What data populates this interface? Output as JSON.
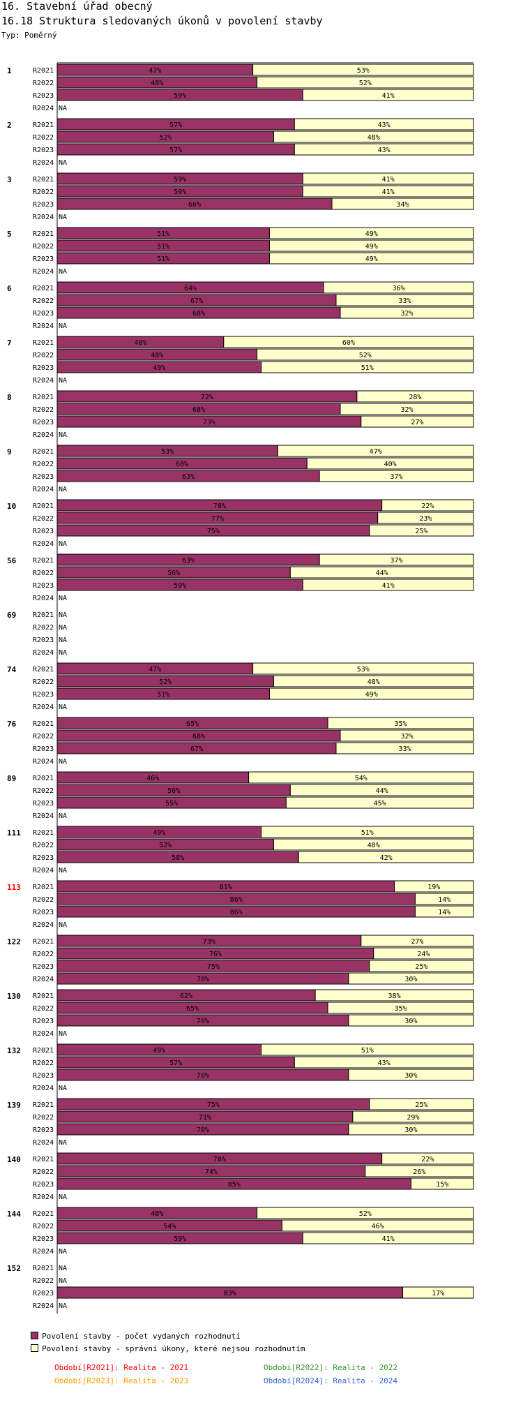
{
  "header": {
    "title": "16. Stavební úřad obecný",
    "subtitle": "16.18 Struktura sledovaných úkonů v povolení stavby",
    "type_label": "Typ: Poměrný"
  },
  "colors": {
    "issued": "#993366",
    "other": "#ffffcc",
    "highlight_group": "#ff0000",
    "normal_group": "#000000",
    "period_2021": "#ff0000",
    "period_2022": "#339933",
    "period_2023": "#ff9900",
    "period_2024": "#3366cc"
  },
  "chart_data": {
    "type": "bar",
    "orientation": "horizontal",
    "stacked": "percent",
    "title": "16.18 Struktura sledovaných úkonů v povolení stavby",
    "xlim": [
      0,
      100
    ],
    "na_label": "NA",
    "series": [
      {
        "name": "Povolení stavby - počet vydaných rozhodnutí",
        "color": "#993366"
      },
      {
        "name": "Povolení stavby - správní úkony, které nejsou rozhodnutím",
        "color": "#ffffcc"
      }
    ],
    "highlight_group": "113",
    "groups": [
      {
        "label": "1",
        "rows": [
          {
            "period": "R2021",
            "values": [
              47,
              53
            ]
          },
          {
            "period": "R2022",
            "values": [
              48,
              52
            ]
          },
          {
            "period": "R2023",
            "values": [
              59,
              41
            ]
          },
          {
            "period": "R2024",
            "values": null
          }
        ]
      },
      {
        "label": "2",
        "rows": [
          {
            "period": "R2021",
            "values": [
              57,
              43
            ]
          },
          {
            "period": "R2022",
            "values": [
              52,
              48
            ]
          },
          {
            "period": "R2023",
            "values": [
              57,
              43
            ]
          },
          {
            "period": "R2024",
            "values": null
          }
        ]
      },
      {
        "label": "3",
        "rows": [
          {
            "period": "R2021",
            "values": [
              59,
              41
            ]
          },
          {
            "period": "R2022",
            "values": [
              59,
              41
            ]
          },
          {
            "period": "R2023",
            "values": [
              66,
              34
            ]
          },
          {
            "period": "R2024",
            "values": null
          }
        ]
      },
      {
        "label": "5",
        "rows": [
          {
            "period": "R2021",
            "values": [
              51,
              49
            ]
          },
          {
            "period": "R2022",
            "values": [
              51,
              49
            ]
          },
          {
            "period": "R2023",
            "values": [
              51,
              49
            ]
          },
          {
            "period": "R2024",
            "values": null
          }
        ]
      },
      {
        "label": "6",
        "rows": [
          {
            "period": "R2021",
            "values": [
              64,
              36
            ]
          },
          {
            "period": "R2022",
            "values": [
              67,
              33
            ]
          },
          {
            "period": "R2023",
            "values": [
              68,
              32
            ]
          },
          {
            "period": "R2024",
            "values": null
          }
        ]
      },
      {
        "label": "7",
        "rows": [
          {
            "period": "R2021",
            "values": [
              40,
              60
            ]
          },
          {
            "period": "R2022",
            "values": [
              48,
              52
            ]
          },
          {
            "period": "R2023",
            "values": [
              49,
              51
            ]
          },
          {
            "period": "R2024",
            "values": null
          }
        ]
      },
      {
        "label": "8",
        "rows": [
          {
            "period": "R2021",
            "values": [
              72,
              28
            ]
          },
          {
            "period": "R2022",
            "values": [
              68,
              32
            ]
          },
          {
            "period": "R2023",
            "values": [
              73,
              27
            ]
          },
          {
            "period": "R2024",
            "values": null
          }
        ]
      },
      {
        "label": "9",
        "rows": [
          {
            "period": "R2021",
            "values": [
              53,
              47
            ]
          },
          {
            "period": "R2022",
            "values": [
              60,
              40
            ]
          },
          {
            "period": "R2023",
            "values": [
              63,
              37
            ]
          },
          {
            "period": "R2024",
            "values": null
          }
        ]
      },
      {
        "label": "10",
        "rows": [
          {
            "period": "R2021",
            "values": [
              78,
              22
            ]
          },
          {
            "period": "R2022",
            "values": [
              77,
              23
            ]
          },
          {
            "period": "R2023",
            "values": [
              75,
              25
            ]
          },
          {
            "period": "R2024",
            "values": null
          }
        ]
      },
      {
        "label": "56",
        "rows": [
          {
            "period": "R2021",
            "values": [
              63,
              37
            ]
          },
          {
            "period": "R2022",
            "values": [
              56,
              44
            ]
          },
          {
            "period": "R2023",
            "values": [
              59,
              41
            ]
          },
          {
            "period": "R2024",
            "values": null
          }
        ]
      },
      {
        "label": "69",
        "rows": [
          {
            "period": "R2021",
            "values": null
          },
          {
            "period": "R2022",
            "values": null
          },
          {
            "period": "R2023",
            "values": null
          },
          {
            "period": "R2024",
            "values": null
          }
        ]
      },
      {
        "label": "74",
        "rows": [
          {
            "period": "R2021",
            "values": [
              47,
              53
            ]
          },
          {
            "period": "R2022",
            "values": [
              52,
              48
            ]
          },
          {
            "period": "R2023",
            "values": [
              51,
              49
            ]
          },
          {
            "period": "R2024",
            "values": null
          }
        ]
      },
      {
        "label": "76",
        "rows": [
          {
            "period": "R2021",
            "values": [
              65,
              35
            ]
          },
          {
            "period": "R2022",
            "values": [
              68,
              32
            ]
          },
          {
            "period": "R2023",
            "values": [
              67,
              33
            ]
          },
          {
            "period": "R2024",
            "values": null
          }
        ]
      },
      {
        "label": "89",
        "rows": [
          {
            "period": "R2021",
            "values": [
              46,
              54
            ]
          },
          {
            "period": "R2022",
            "values": [
              56,
              44
            ]
          },
          {
            "period": "R2023",
            "values": [
              55,
              45
            ]
          },
          {
            "period": "R2024",
            "values": null
          }
        ]
      },
      {
        "label": "111",
        "rows": [
          {
            "period": "R2021",
            "values": [
              49,
              51
            ]
          },
          {
            "period": "R2022",
            "values": [
              52,
              48
            ]
          },
          {
            "period": "R2023",
            "values": [
              58,
              42
            ]
          },
          {
            "period": "R2024",
            "values": null
          }
        ]
      },
      {
        "label": "113",
        "rows": [
          {
            "period": "R2021",
            "values": [
              81,
              19
            ]
          },
          {
            "period": "R2022",
            "values": [
              86,
              14
            ]
          },
          {
            "period": "R2023",
            "values": [
              86,
              14
            ]
          },
          {
            "period": "R2024",
            "values": null
          }
        ]
      },
      {
        "label": "122",
        "rows": [
          {
            "period": "R2021",
            "values": [
              73,
              27
            ]
          },
          {
            "period": "R2022",
            "values": [
              76,
              24
            ]
          },
          {
            "period": "R2023",
            "values": [
              75,
              25
            ]
          },
          {
            "period": "R2024",
            "values": [
              70,
              30
            ]
          }
        ]
      },
      {
        "label": "130",
        "rows": [
          {
            "period": "R2021",
            "values": [
              62,
              38
            ]
          },
          {
            "period": "R2022",
            "values": [
              65,
              35
            ]
          },
          {
            "period": "R2023",
            "values": [
              70,
              30
            ]
          },
          {
            "period": "R2024",
            "values": null
          }
        ]
      },
      {
        "label": "132",
        "rows": [
          {
            "period": "R2021",
            "values": [
              49,
              51
            ]
          },
          {
            "period": "R2022",
            "values": [
              57,
              43
            ]
          },
          {
            "period": "R2023",
            "values": [
              70,
              30
            ]
          },
          {
            "period": "R2024",
            "values": null
          }
        ]
      },
      {
        "label": "139",
        "rows": [
          {
            "period": "R2021",
            "values": [
              75,
              25
            ]
          },
          {
            "period": "R2022",
            "values": [
              71,
              29
            ]
          },
          {
            "period": "R2023",
            "values": [
              70,
              30
            ]
          },
          {
            "period": "R2024",
            "values": null
          }
        ]
      },
      {
        "label": "140",
        "rows": [
          {
            "period": "R2021",
            "values": [
              78,
              22
            ]
          },
          {
            "period": "R2022",
            "values": [
              74,
              26
            ]
          },
          {
            "period": "R2023",
            "values": [
              85,
              15
            ]
          },
          {
            "period": "R2024",
            "values": null
          }
        ]
      },
      {
        "label": "144",
        "rows": [
          {
            "period": "R2021",
            "values": [
              48,
              52
            ]
          },
          {
            "period": "R2022",
            "values": [
              54,
              46
            ]
          },
          {
            "period": "R2023",
            "values": [
              59,
              41
            ]
          },
          {
            "period": "R2024",
            "values": null
          }
        ]
      },
      {
        "label": "152",
        "rows": [
          {
            "period": "R2021",
            "values": null
          },
          {
            "period": "R2022",
            "values": null
          },
          {
            "period": "R2023",
            "values": [
              83,
              17
            ]
          },
          {
            "period": "R2024",
            "values": null
          }
        ]
      }
    ]
  },
  "legend": {
    "items": [
      "Povolení stavby - počet vydaných rozhodnutí",
      "Povolení stavby - správní úkony, které nejsou rozhodnutím"
    ],
    "periods": [
      "Období[R2021]: Realita - 2021",
      "Období[R2022]: Realita - 2022",
      "Období[R2023]: Realita - 2023",
      "Období[R2024]: Realita - 2024"
    ]
  }
}
